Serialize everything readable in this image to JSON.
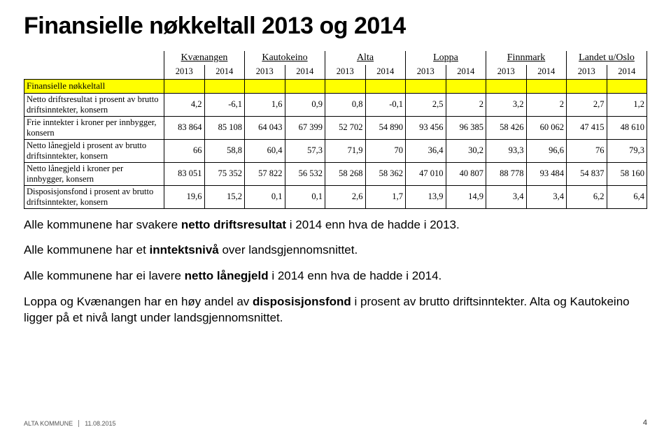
{
  "title": "Finansielle nøkkeltall 2013 og 2014",
  "table": {
    "groupHeaders": [
      "Kvænangen",
      "Kautokeino",
      "Alta",
      "Loppa",
      "Finnmark",
      "Landet u/Oslo"
    ],
    "years": [
      "2013",
      "2014",
      "2013",
      "2014",
      "2013",
      "2014",
      "2013",
      "2014",
      "2013",
      "2014",
      "2013",
      "2014"
    ],
    "sectionLabel": "Finansielle nøkkeltall",
    "rows": [
      {
        "label": "Netto driftsresultat i prosent av brutto driftsinntekter, konsern",
        "vals": [
          "4,2",
          "-6,1",
          "1,6",
          "0,9",
          "0,8",
          "-0,1",
          "2,5",
          "2",
          "3,2",
          "2",
          "2,7",
          "1,2"
        ]
      },
      {
        "label": "Frie inntekter i kroner per innbygger, konsern",
        "vals": [
          "83 864",
          "85 108",
          "64 043",
          "67 399",
          "52 702",
          "54 890",
          "93 456",
          "96 385",
          "58 426",
          "60 062",
          "47 415",
          "48 610"
        ]
      },
      {
        "label": "Netto lånegjeld i prosent av brutto driftsinntekter, konsern",
        "vals": [
          "66",
          "58,8",
          "60,4",
          "57,3",
          "71,9",
          "70",
          "36,4",
          "30,2",
          "93,3",
          "96,6",
          "76",
          "79,3"
        ]
      },
      {
        "label": "Netto lånegjeld i kroner per innbygger, konsern",
        "vals": [
          "83 051",
          "75 352",
          "57 822",
          "56 532",
          "58 268",
          "58 362",
          "47 010",
          "40 807",
          "88 778",
          "93 484",
          "54 837",
          "58 160"
        ]
      },
      {
        "label": "Disposisjonsfond i prosent av brutto driftsinntekter, konsern",
        "vals": [
          "19,6",
          "15,2",
          "0,1",
          "0,1",
          "2,6",
          "1,7",
          "13,9",
          "14,9",
          "3,4",
          "3,4",
          "6,2",
          "6,4"
        ]
      }
    ]
  },
  "bullets": {
    "b1a": "Alle kommunene har svakere ",
    "b1bold": "netto driftsresultat",
    "b1b": " i 2014 enn hva de hadde i 2013.",
    "b2a": "Alle kommunene har et ",
    "b2bold": "inntektsnivå",
    "b2b": " over landsgjennomsnittet.",
    "b3a": "Alle kommunene har ei lavere ",
    "b3bold": "netto lånegjeld",
    "b3b": " i 2014 enn hva de hadde i 2014.",
    "b4a": "Loppa og Kvænangen har en høy andel av ",
    "b4bold": "disposisjonsfond",
    "b4b": " i prosent av brutto driftsinntekter. Alta og Kautokeino ligger på et nivå langt under landsgjennomsnittet."
  },
  "footer": {
    "org": "ALTA KOMMUNE",
    "date": "11.08.2015",
    "page": "4"
  }
}
